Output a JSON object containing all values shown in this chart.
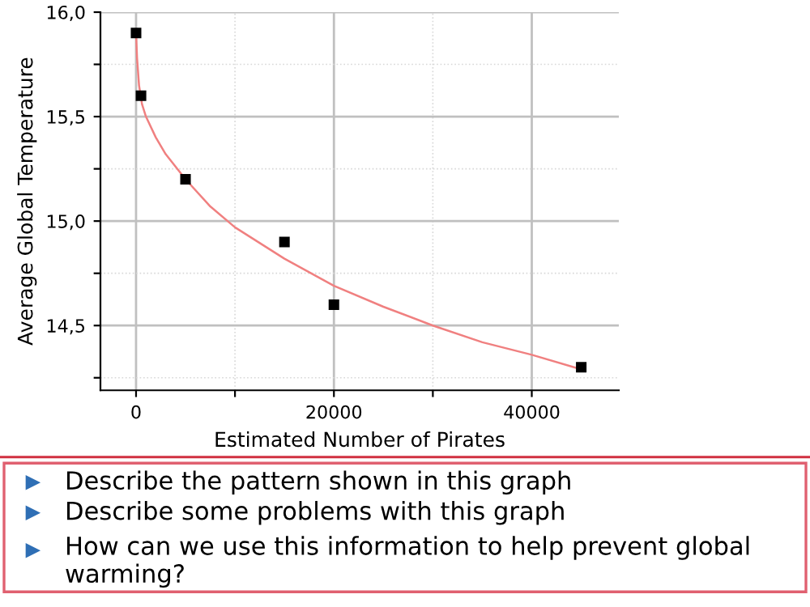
{
  "chart_data": {
    "type": "scatter",
    "xlabel": "Estimated Number of Pirates",
    "ylabel": "Average Global Temperature",
    "series": [
      {
        "color": "#000000",
        "marker": "square",
        "x": [
          0,
          500,
          5000,
          15000,
          20000,
          45000
        ],
        "values": [
          15.9,
          15.6,
          15.2,
          14.9,
          14.6,
          14.3
        ]
      },
      {
        "type": "line",
        "color": "#f08080",
        "marker": "none",
        "x": [
          0,
          100,
          300,
          600,
          1000,
          2000,
          3000,
          5000,
          7500,
          10000,
          15000,
          20000,
          25000,
          30000,
          35000,
          40000,
          45000
        ],
        "values": [
          15.9,
          15.78,
          15.65,
          15.56,
          15.5,
          15.4,
          15.32,
          15.2,
          15.07,
          14.97,
          14.82,
          14.69,
          14.59,
          14.5,
          14.42,
          14.36,
          14.29
        ]
      }
    ],
    "xlim": [
      -3600,
      48800
    ],
    "ylim": [
      14.19,
      16.0
    ],
    "xticks": [
      0,
      {
        "value": 10000,
        "label": null
      },
      20000,
      {
        "value": 30000,
        "label": null
      },
      40000
    ],
    "yticks": [
      {
        "value": 14.25,
        "label": null
      },
      {
        "value": 14.5,
        "label": "14,5"
      },
      {
        "value": 14.75,
        "label": null
      },
      {
        "value": 15.0,
        "label": "15,0"
      },
      {
        "value": 15.25,
        "label": null
      },
      {
        "value": 15.5,
        "label": "15,5"
      },
      {
        "value": 15.75,
        "label": null
      },
      {
        "value": 16.0,
        "label": "16,0"
      }
    ],
    "grid": true,
    "annotations": [
      "Describe the pattern shown in this graph",
      "Describe some problems with this graph",
      "How can we use this information to help prevent global warming?"
    ]
  }
}
